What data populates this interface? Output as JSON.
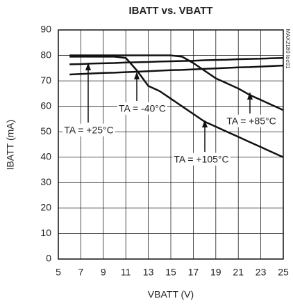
{
  "chart_data": {
    "type": "line",
    "title": "IBATT vs. VBATT",
    "x_label": "VBATT (V)",
    "y_label": "IBATT (mA)",
    "x": [
      6,
      7,
      8,
      9,
      10,
      11,
      12,
      13,
      14,
      15,
      16,
      17,
      18,
      19,
      20,
      21,
      22,
      23,
      24,
      25
    ],
    "series": [
      {
        "name": "TA = -40°C",
        "color": "#111111",
        "values": [
          72.5,
          72.7,
          72.9,
          73.1,
          73.2,
          73.4,
          73.6,
          73.8,
          74,
          74.2,
          74.3,
          74.5,
          74.7,
          74.9,
          75.1,
          75.3,
          75.4,
          75.6,
          75.8,
          76
        ]
      },
      {
        "name": "TA = +25°C",
        "color": "#111111",
        "values": [
          76.5,
          76.6,
          76.8,
          76.9,
          77,
          77.2,
          77.3,
          77.4,
          77.6,
          77.7,
          77.8,
          77.9,
          78.1,
          78.2,
          78.3,
          78.5,
          78.6,
          78.7,
          78.9,
          79
        ]
      },
      {
        "name": "TA = +85°C",
        "color": "#111111",
        "values": [
          80,
          80,
          80,
          80,
          80,
          80,
          80,
          80,
          80,
          80,
          79.5,
          77,
          74,
          71,
          69,
          67,
          64.5,
          62.5,
          60.5,
          58.5
        ]
      },
      {
        "name": "TA = +105°C",
        "color": "#111111",
        "values": [
          79.5,
          79.5,
          79.5,
          79.5,
          79.5,
          79,
          74,
          68,
          66,
          63,
          60,
          57,
          54,
          52,
          50,
          48,
          46,
          44,
          42,
          40
        ]
      }
    ],
    "xlim": [
      5,
      25
    ],
    "xticks": [
      5,
      7,
      9,
      11,
      13,
      15,
      17,
      19,
      21,
      23,
      25
    ],
    "ylim": [
      0,
      90
    ],
    "yticks": [
      0,
      10,
      20,
      30,
      40,
      50,
      60,
      70,
      80,
      90
    ],
    "grid": true,
    "watermark": "MAX2180 toc01"
  }
}
